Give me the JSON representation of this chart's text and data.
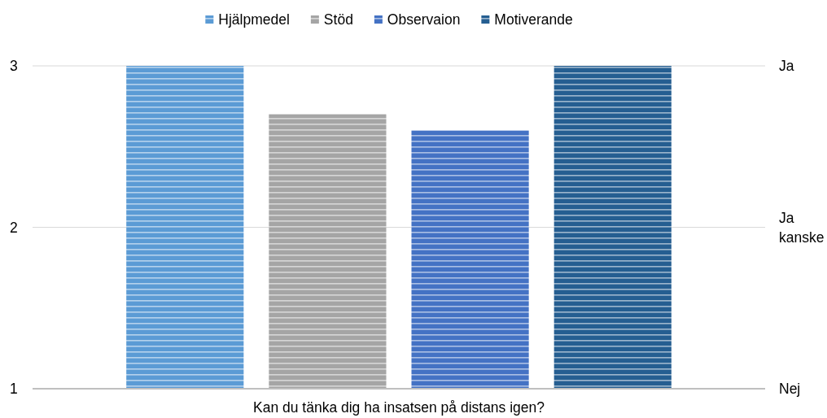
{
  "chart_data": {
    "type": "bar",
    "categories": [
      "Kan du tänka dig ha insatsen på distans igen?"
    ],
    "series": [
      {
        "name": "Hjälpmedel",
        "color": "#5b9bd5",
        "values": [
          3
        ]
      },
      {
        "name": "Stöd",
        "color": "#a5a5a5",
        "values": [
          2.7
        ]
      },
      {
        "name": "Observaion",
        "color": "#4472c4",
        "values": [
          2.6
        ]
      },
      {
        "name": "Motiverande",
        "color": "#255e91",
        "values": [
          3
        ]
      }
    ],
    "ylim": [
      1,
      3
    ],
    "yticks": [
      1,
      2,
      3
    ],
    "annotations": [
      "Ja",
      "Ja kanske",
      "Nej"
    ],
    "grid": "y",
    "legend": "top"
  }
}
